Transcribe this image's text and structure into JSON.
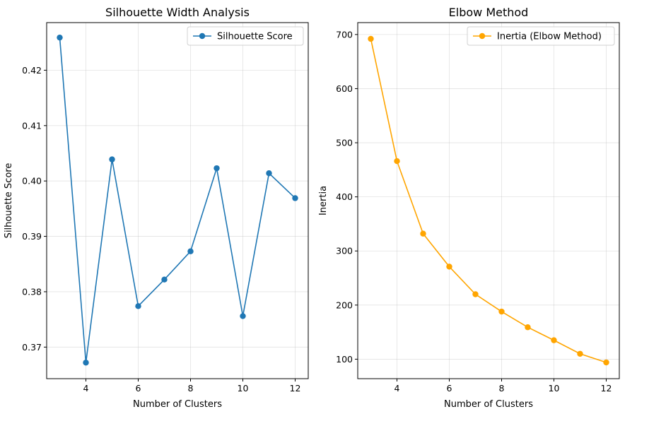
{
  "chart_data": [
    {
      "type": "line",
      "title": "Silhouette Width Analysis",
      "xlabel": "Number of Clusters",
      "ylabel": "Silhouette Score",
      "xlim": [
        2.5,
        12.5
      ],
      "ylim": [
        0.3643,
        0.4286
      ],
      "xticks": [
        4,
        6,
        8,
        10,
        12
      ],
      "yticks": [
        0.37,
        0.38,
        0.39,
        0.4,
        0.41,
        0.42
      ],
      "ytick_labels": [
        "0.37",
        "0.38",
        "0.39",
        "0.40",
        "0.41",
        "0.42"
      ],
      "grid": true,
      "legend_position": "top-right",
      "series": [
        {
          "name": "Silhouette Score",
          "color": "#1f77b4",
          "marker": "circle",
          "x": [
            3,
            4,
            5,
            6,
            7,
            8,
            9,
            10,
            11,
            12
          ],
          "values": [
            0.4259,
            0.3672,
            0.4039,
            0.3774,
            0.3822,
            0.3873,
            0.4023,
            0.3756,
            0.4014,
            0.3969
          ]
        }
      ]
    },
    {
      "type": "line",
      "title": "Elbow Method",
      "xlabel": "Number of Clusters",
      "ylabel": "Inertia",
      "xlim": [
        2.5,
        12.5
      ],
      "ylim": [
        64,
        722
      ],
      "xticks": [
        4,
        6,
        8,
        10,
        12
      ],
      "yticks": [
        100,
        200,
        300,
        400,
        500,
        600,
        700
      ],
      "ytick_labels": [
        "100",
        "200",
        "300",
        "400",
        "500",
        "600",
        "700"
      ],
      "grid": true,
      "legend_position": "top-right",
      "series": [
        {
          "name": "Inertia (Elbow Method)",
          "color": "#ffa500",
          "marker": "circle",
          "x": [
            3,
            4,
            5,
            6,
            7,
            8,
            9,
            10,
            11,
            12
          ],
          "values": [
            692,
            466,
            332,
            271,
            220,
            188,
            159,
            135,
            110,
            94
          ]
        }
      ]
    }
  ]
}
